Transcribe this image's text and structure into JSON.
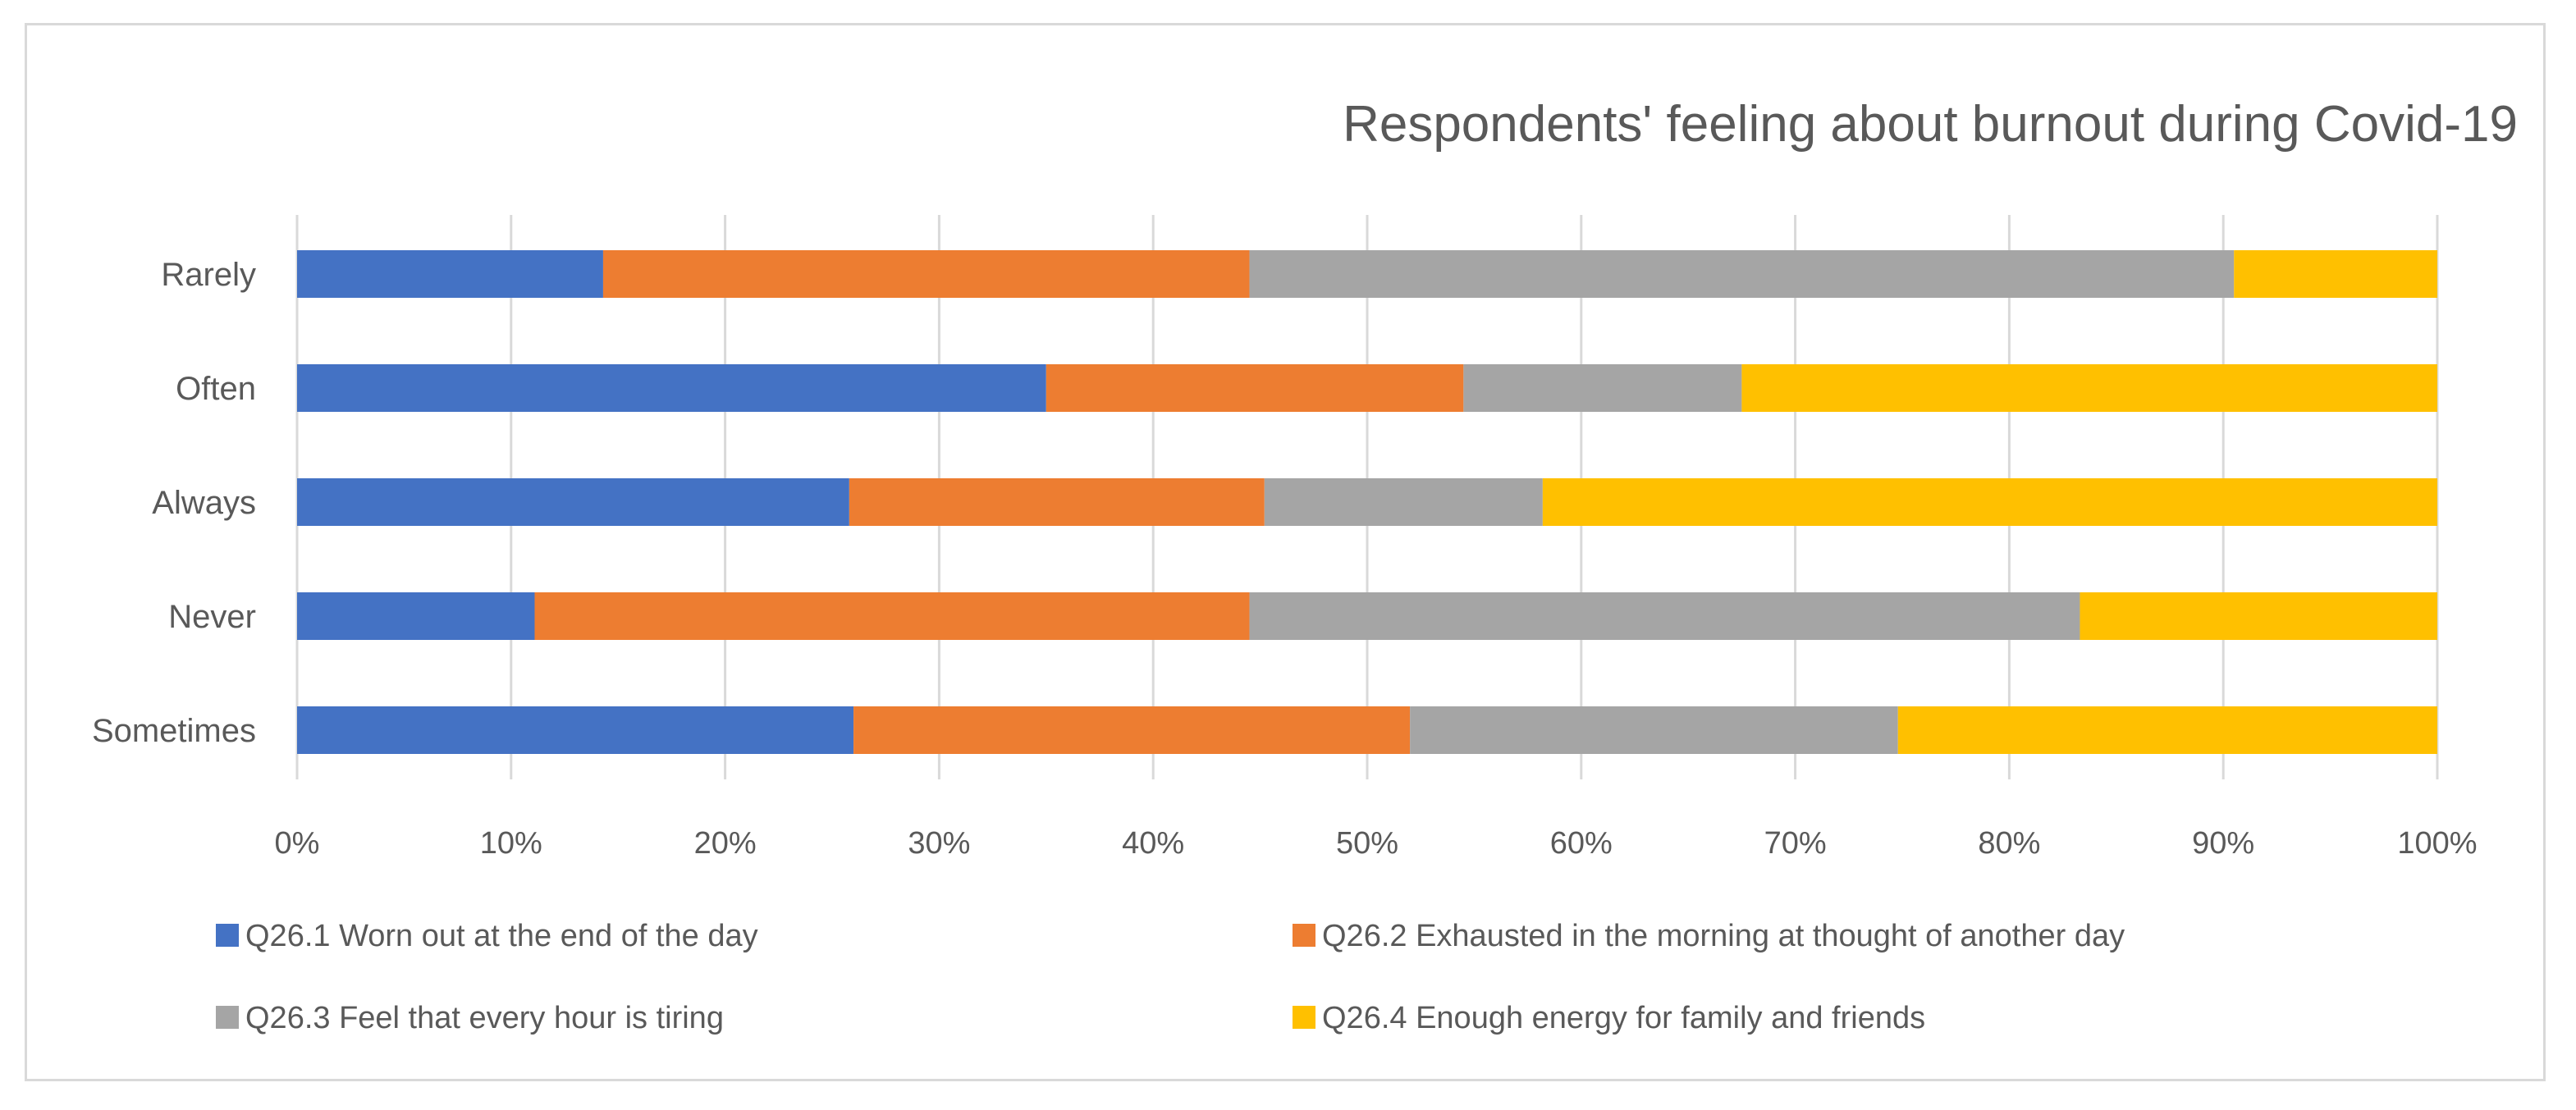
{
  "chart_data": {
    "type": "bar",
    "orientation": "horizontal",
    "stacked": "percent",
    "title": "Respondents' feeling about burnout during Covid-19",
    "xlabel": "",
    "ylabel": "",
    "categories": [
      "Rarely",
      "Often",
      "Always",
      "Never",
      "Sometimes"
    ],
    "x_ticks": [
      "0%",
      "10%",
      "20%",
      "30%",
      "40%",
      "50%",
      "60%",
      "70%",
      "80%",
      "90%",
      "100%"
    ],
    "xlim": [
      0,
      100
    ],
    "grid": true,
    "legend_position": "bottom",
    "series": [
      {
        "name": "Q26.1 Worn out at the end of the day",
        "color": "#4472C4",
        "values": [
          14.3,
          35.0,
          25.8,
          11.1,
          26.0
        ]
      },
      {
        "name": "Q26.2 Exhausted in the morning at thought of another day",
        "color": "#ED7D31",
        "values": [
          30.2,
          19.5,
          19.4,
          33.4,
          26.0
        ]
      },
      {
        "name": "Q26.3 Feel that every hour is tiring",
        "color": "#A5A5A5",
        "values": [
          46.0,
          13.0,
          13.0,
          38.8,
          22.8
        ]
      },
      {
        "name": "Q26.4 Enough energy for family and friends",
        "color": "#FFC000",
        "values": [
          9.5,
          32.5,
          41.8,
          16.7,
          25.2
        ]
      }
    ]
  }
}
